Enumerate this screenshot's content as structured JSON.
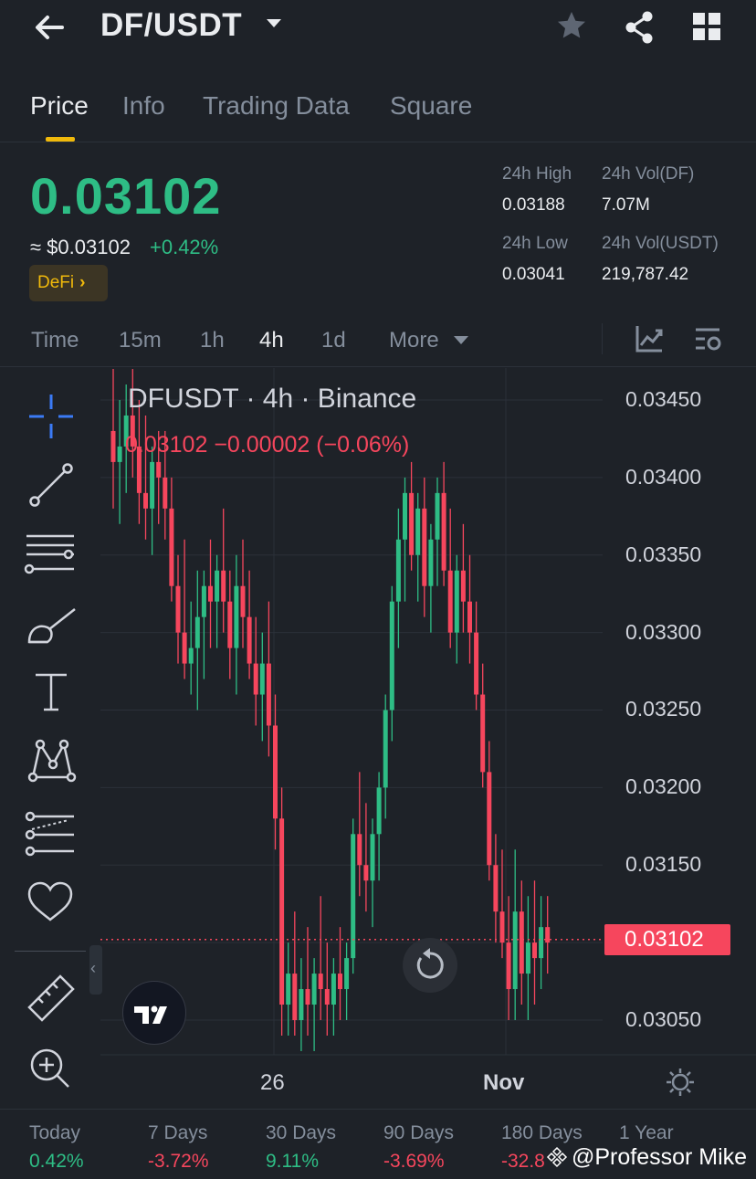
{
  "header": {
    "pair": "DF/USDT",
    "icons": [
      "back-arrow-icon",
      "caret-down-icon",
      "star-icon",
      "share-icon",
      "grid-icon"
    ]
  },
  "tabs": [
    {
      "label": "Price",
      "active": true
    },
    {
      "label": "Info",
      "active": false
    },
    {
      "label": "Trading Data",
      "active": false
    },
    {
      "label": "Square",
      "active": false
    }
  ],
  "price": {
    "last": "0.03102",
    "usd": "≈ $0.03102",
    "change": "+0.42%",
    "category": "DeFi",
    "category_chevron": "›"
  },
  "stats": {
    "high_label": "24h High",
    "high_value": "0.03188",
    "vol_df_label": "24h Vol(DF)",
    "vol_df_value": "7.07M",
    "low_label": "24h Low",
    "low_value": "0.03041",
    "vol_usdt_label": "24h Vol(USDT)",
    "vol_usdt_value": "219,787.42"
  },
  "intervals": [
    {
      "label": "Time",
      "active": false
    },
    {
      "label": "15m",
      "active": false
    },
    {
      "label": "1h",
      "active": false
    },
    {
      "label": "4h",
      "active": true
    },
    {
      "label": "1d",
      "active": false
    },
    {
      "label": "More",
      "active": false
    }
  ],
  "chart": {
    "legend_title": "DFUSDT · 4h · Binance",
    "legend_ohlc": "0.03102 −0.00002 (−0.06%)",
    "current_price": "0.03102",
    "y_ticks": [
      "0.03450",
      "0.03400",
      "0.03350",
      "0.03300",
      "0.03250",
      "0.03200",
      "0.03150",
      "0.03050"
    ],
    "x_ticks": [
      "26",
      "Nov"
    ],
    "colors": {
      "up": "#2ebd85",
      "down": "#f6465d",
      "grid": "#2b3039",
      "background": "#1e2228"
    }
  },
  "chart_data": {
    "type": "candlestick",
    "title": "DFUSDT · 4h · Binance",
    "ylim": [
      0.0302,
      0.0347
    ],
    "y_ticks": [
      0.0345,
      0.034,
      0.0335,
      0.033,
      0.0325,
      0.032,
      0.0315,
      0.031,
      0.0305
    ],
    "x_ticks": [
      "26",
      "Nov"
    ],
    "last_price": 0.03102,
    "candles": [
      [
        0.0343,
        0.0347,
        0.0338,
        0.0341
      ],
      [
        0.0341,
        0.0345,
        0.0337,
        0.0342
      ],
      [
        0.0342,
        0.0346,
        0.0339,
        0.0344
      ],
      [
        0.0344,
        0.0347,
        0.034,
        0.0342
      ],
      [
        0.0342,
        0.0345,
        0.0337,
        0.0339
      ],
      [
        0.0339,
        0.0344,
        0.0336,
        0.0338
      ],
      [
        0.0338,
        0.0342,
        0.0335,
        0.0341
      ],
      [
        0.0341,
        0.0343,
        0.0337,
        0.034
      ],
      [
        0.034,
        0.0343,
        0.0336,
        0.0338
      ],
      [
        0.0338,
        0.034,
        0.0332,
        0.0333
      ],
      [
        0.0333,
        0.0335,
        0.0328,
        0.033
      ],
      [
        0.033,
        0.0336,
        0.0327,
        0.0328
      ],
      [
        0.0328,
        0.0332,
        0.0326,
        0.0329
      ],
      [
        0.0329,
        0.0334,
        0.0325,
        0.0331
      ],
      [
        0.0331,
        0.0334,
        0.0327,
        0.0333
      ],
      [
        0.0333,
        0.0336,
        0.0329,
        0.0332
      ],
      [
        0.0332,
        0.0335,
        0.0329,
        0.0334
      ],
      [
        0.0334,
        0.0338,
        0.033,
        0.0332
      ],
      [
        0.0332,
        0.0334,
        0.0327,
        0.0329
      ],
      [
        0.0329,
        0.0335,
        0.0326,
        0.0333
      ],
      [
        0.0333,
        0.0336,
        0.0329,
        0.0331
      ],
      [
        0.0331,
        0.0334,
        0.0327,
        0.0328
      ],
      [
        0.0328,
        0.0331,
        0.0324,
        0.0326
      ],
      [
        0.0326,
        0.033,
        0.0323,
        0.0328
      ],
      [
        0.0328,
        0.0332,
        0.0322,
        0.0324
      ],
      [
        0.0324,
        0.0326,
        0.0316,
        0.0318
      ],
      [
        0.0318,
        0.032,
        0.0304,
        0.0306
      ],
      [
        0.0306,
        0.031,
        0.0304,
        0.0308
      ],
      [
        0.0308,
        0.0312,
        0.0304,
        0.0305
      ],
      [
        0.0305,
        0.0309,
        0.0303,
        0.0307
      ],
      [
        0.0307,
        0.0311,
        0.0304,
        0.0306
      ],
      [
        0.0306,
        0.0309,
        0.0303,
        0.0308
      ],
      [
        0.0308,
        0.0313,
        0.0305,
        0.0307
      ],
      [
        0.0307,
        0.031,
        0.0304,
        0.0306
      ],
      [
        0.0306,
        0.0309,
        0.0304,
        0.0308
      ],
      [
        0.0308,
        0.0311,
        0.0305,
        0.0307
      ],
      [
        0.0307,
        0.031,
        0.0305,
        0.0309
      ],
      [
        0.0309,
        0.0318,
        0.0308,
        0.0317
      ],
      [
        0.0317,
        0.0321,
        0.0313,
        0.0315
      ],
      [
        0.0315,
        0.0319,
        0.0312,
        0.0314
      ],
      [
        0.0314,
        0.0318,
        0.0311,
        0.0317
      ],
      [
        0.0317,
        0.0321,
        0.0314,
        0.032
      ],
      [
        0.032,
        0.0326,
        0.0318,
        0.0325
      ],
      [
        0.0325,
        0.0333,
        0.0323,
        0.0332
      ],
      [
        0.0332,
        0.0338,
        0.0329,
        0.0336
      ],
      [
        0.0336,
        0.034,
        0.0332,
        0.0339
      ],
      [
        0.0339,
        0.0341,
        0.0334,
        0.0335
      ],
      [
        0.0335,
        0.0339,
        0.0332,
        0.0338
      ],
      [
        0.0338,
        0.034,
        0.0331,
        0.0333
      ],
      [
        0.0333,
        0.0337,
        0.033,
        0.0336
      ],
      [
        0.0336,
        0.034,
        0.0333,
        0.0339
      ],
      [
        0.0339,
        0.0341,
        0.0333,
        0.0334
      ],
      [
        0.0334,
        0.0338,
        0.0329,
        0.033
      ],
      [
        0.033,
        0.0335,
        0.0328,
        0.0334
      ],
      [
        0.0334,
        0.0337,
        0.033,
        0.0332
      ],
      [
        0.0332,
        0.0335,
        0.0328,
        0.033
      ],
      [
        0.033,
        0.0332,
        0.0325,
        0.0326
      ],
      [
        0.0326,
        0.0328,
        0.032,
        0.0321
      ],
      [
        0.0321,
        0.0323,
        0.0314,
        0.0315
      ],
      [
        0.0315,
        0.0317,
        0.031,
        0.0312
      ],
      [
        0.0312,
        0.0316,
        0.0309,
        0.031
      ],
      [
        0.031,
        0.0313,
        0.0305,
        0.0307
      ],
      [
        0.0307,
        0.0316,
        0.0305,
        0.0312
      ],
      [
        0.0312,
        0.0314,
        0.0306,
        0.0308
      ],
      [
        0.0308,
        0.0313,
        0.0305,
        0.031
      ],
      [
        0.031,
        0.0314,
        0.0306,
        0.0309
      ],
      [
        0.0309,
        0.0313,
        0.0307,
        0.0311
      ],
      [
        0.0311,
        0.0313,
        0.0308,
        0.031
      ]
    ]
  },
  "performance": [
    {
      "label": "Today",
      "value": "0.42%",
      "dir": "up"
    },
    {
      "label": "7 Days",
      "value": "-3.72%",
      "dir": "down"
    },
    {
      "label": "30 Days",
      "value": "9.11%",
      "dir": "up"
    },
    {
      "label": "90 Days",
      "value": "-3.69%",
      "dir": "down"
    },
    {
      "label": "180 Days",
      "value": "-32.8",
      "dir": "down"
    },
    {
      "label": "1 Year",
      "value": "",
      "dir": "down"
    }
  ],
  "watermark": "@Professor Mike"
}
